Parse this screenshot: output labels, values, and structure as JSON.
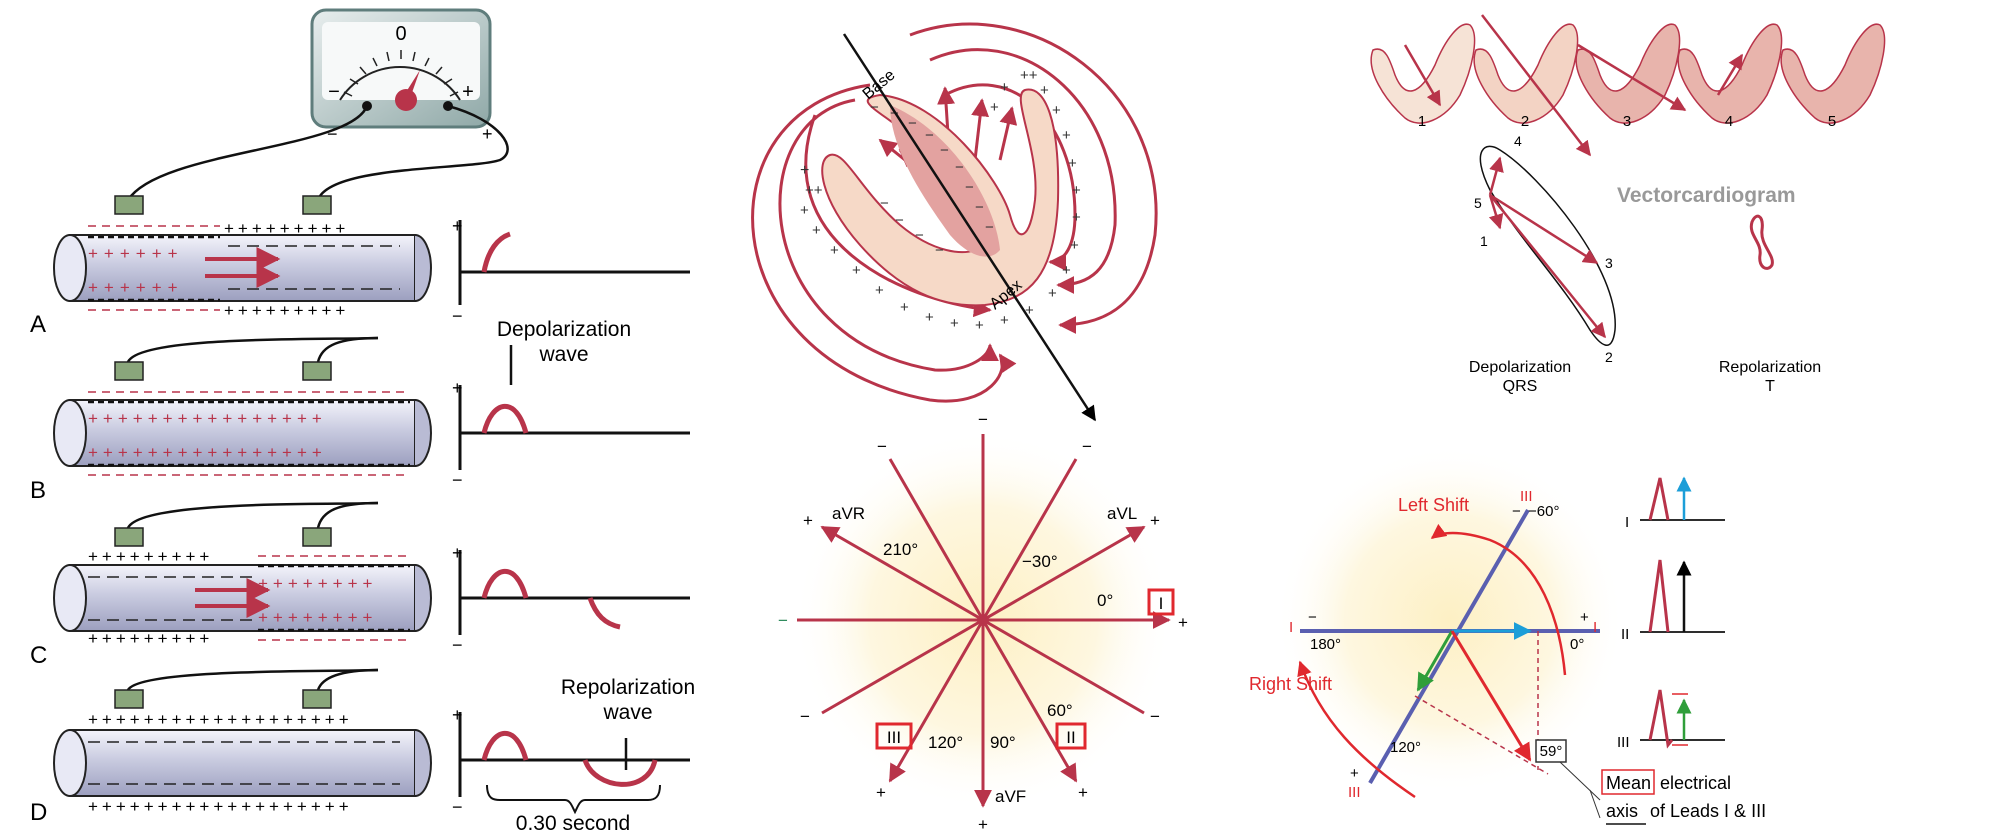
{
  "colors": {
    "signal": "#b8344a",
    "red_label": "#e0282e",
    "blue_axis": "#5a5fb0",
    "cyan_vector": "#1c9ed8",
    "green_vector": "#2f9e3a",
    "meter_frame": "#5f7d7c",
    "electrode": "#8aa67b",
    "gray_title": "#999999"
  },
  "panel_a": {
    "meter_zero": "0",
    "meter_minus": "−",
    "meter_plus": "+",
    "lead_minus": "−",
    "lead_plus": "+",
    "rows": [
      {
        "label": "A"
      },
      {
        "label": "B"
      },
      {
        "label": "C"
      },
      {
        "label": "D"
      }
    ],
    "trace_plus": "+",
    "trace_minus": "−",
    "depolarization_label": [
      "Depolarization",
      "wave"
    ],
    "repolarization_label": [
      "Repolarization",
      "wave"
    ],
    "duration_label": "0.30 second"
  },
  "heart": {
    "base_label": "Base",
    "apex_label": "Apex"
  },
  "hexaxial": {
    "aVR": "aVR",
    "aVL": "aVL",
    "aVF": "aVF",
    "lead_I": "I",
    "lead_II": "II",
    "lead_III": "III",
    "angle_210": "210°",
    "angle_m30": "−30°",
    "angle_0": "0°",
    "angle_60": "60°",
    "angle_90": "90°",
    "angle_120": "120°",
    "plus": "+",
    "minus": "−"
  },
  "vectorcardiogram": {
    "title": "Vectorcardiogram",
    "stages": [
      "1",
      "2",
      "3",
      "4",
      "5"
    ],
    "loop_points": [
      "4",
      "5",
      "1",
      "3",
      "2"
    ],
    "depolarization_label": [
      "Depolarization",
      "QRS"
    ],
    "repolarization_label": [
      "Repolarization",
      "T"
    ]
  },
  "axis_panel": {
    "left_shift": "Left Shift",
    "right_shift": "Right Shift",
    "lead_iii": "III",
    "lead_i": "I",
    "angle_m60": "−60°",
    "angle_180": "180°",
    "angle_0": "0°",
    "angle_120": "120°",
    "angle_59": "59°",
    "caption_line1": [
      "Mean",
      "electrical"
    ],
    "caption_line2": [
      "axis",
      "of Leads I & III"
    ],
    "lead_labels": [
      "I",
      "II",
      "III"
    ],
    "plus": "+",
    "minus": "−"
  }
}
